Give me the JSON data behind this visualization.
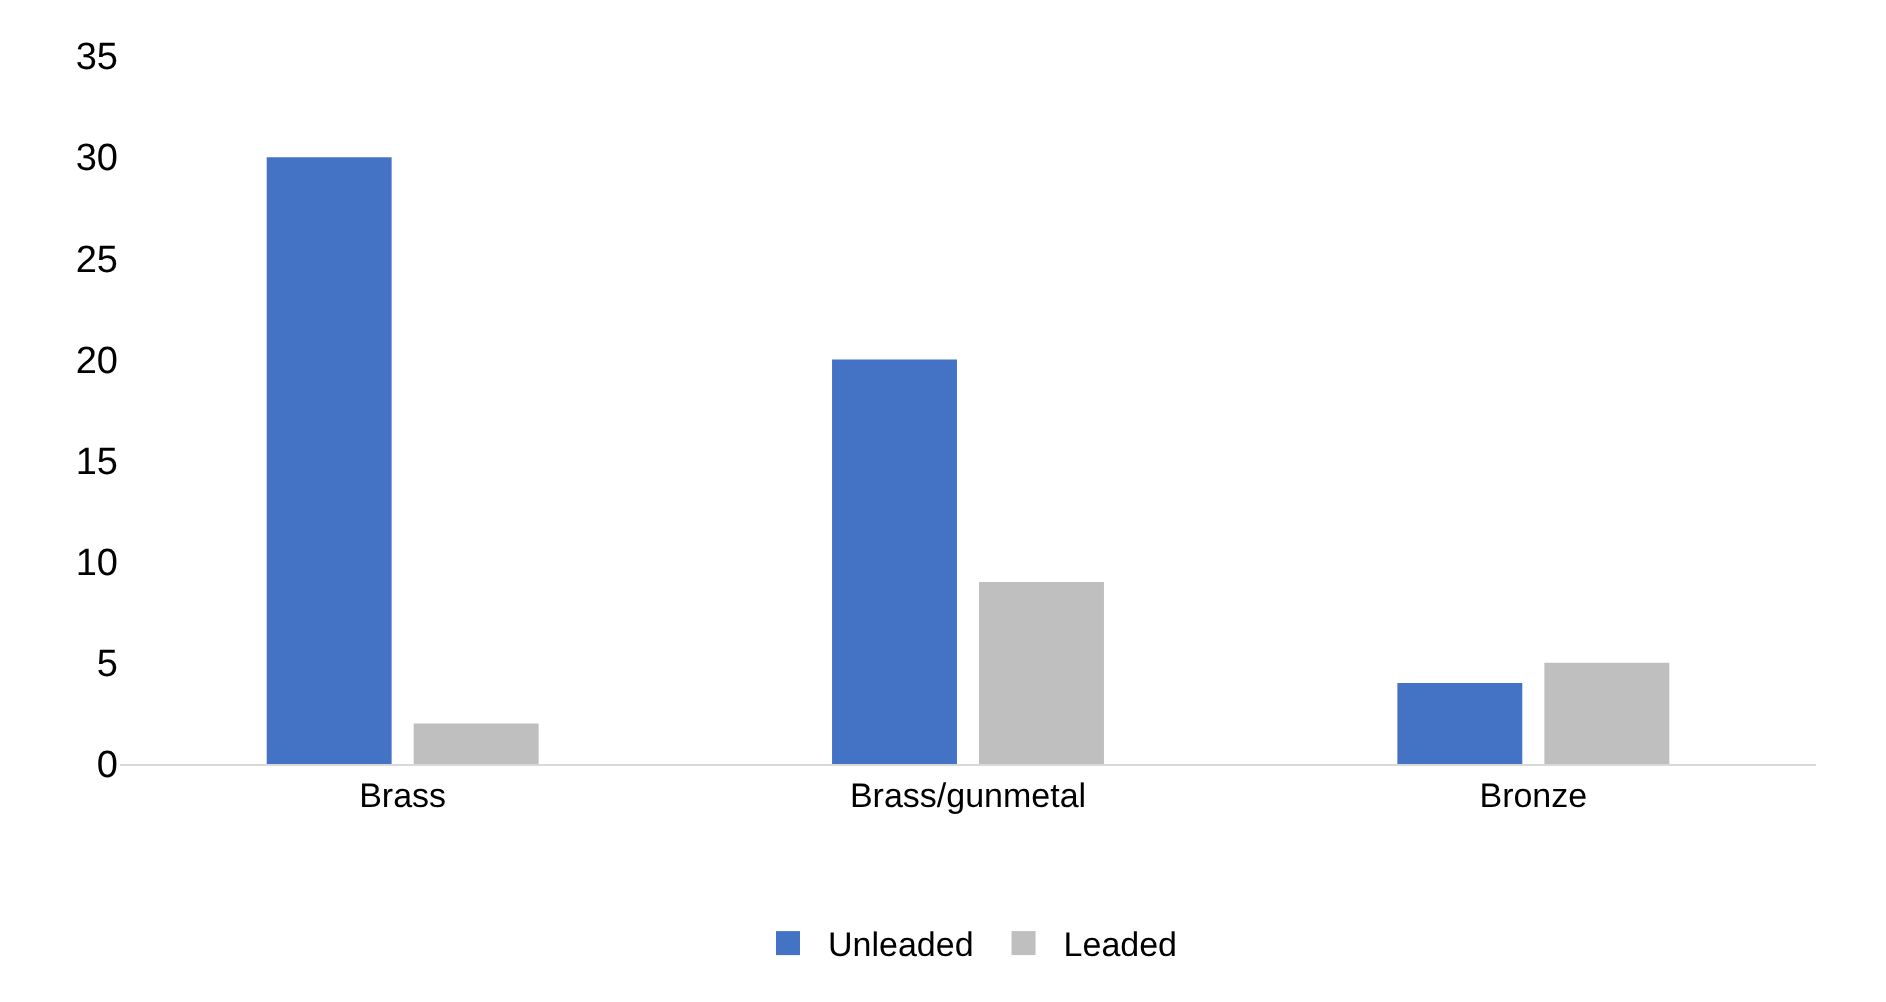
{
  "chart_data": {
    "type": "bar",
    "categories": [
      "Brass",
      "Brass/gunmetal",
      "Bronze"
    ],
    "series": [
      {
        "name": "Unleaded",
        "color": "#4472c4",
        "values": [
          30,
          20,
          4
        ]
      },
      {
        "name": "Leaded",
        "color": "#bfbfbf",
        "values": [
          2,
          9,
          5
        ]
      }
    ],
    "ylim": [
      0,
      35
    ],
    "yticks": [
      0,
      5,
      10,
      15,
      20,
      25,
      30,
      35
    ],
    "grid": false,
    "legend": "bottom"
  }
}
